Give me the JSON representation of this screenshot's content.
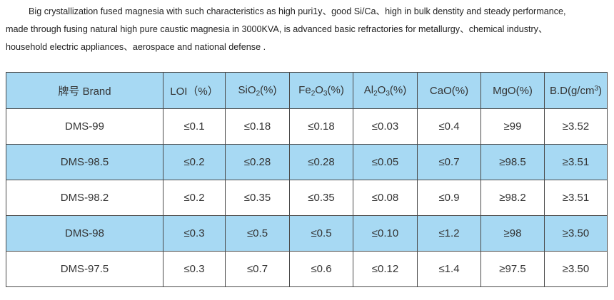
{
  "intro": {
    "line1": "Big crystallization fused magnesia with such characteristics as high puri1y、good Si/Ca、high in bulk denstity and steady performance,",
    "line2": "made through fusing natural high pure caustic magnesia in 3000KVA, is advanced basic refractories for metallurgy、chemical industry、",
    "line3": "household electric appliances、aerospace and national defense ."
  },
  "table": {
    "headers": {
      "brand_cn": "牌号",
      "brand_en": "Brand",
      "loi": "LOI（%）",
      "sio2": {
        "a": "SiO",
        "sub": "2",
        "b": "(%)"
      },
      "fe2o3": {
        "a": "Fe",
        "sub1": "2",
        "b": "O",
        "sub2": "3",
        "c": "(%)"
      },
      "al2o3": {
        "a": "Al",
        "sub1": "2",
        "b": "O",
        "sub2": "3",
        "c": "(%)"
      },
      "cao": "CaO(%)",
      "mgo": "MgO(%)",
      "bd": {
        "a": "B.D(g/cm",
        "sup": "3",
        "b": ")"
      }
    },
    "rows": [
      {
        "brand": "DMS-99",
        "loi": "≤0.1",
        "sio2": "≤0.18",
        "fe2o3": "≤0.18",
        "al2o3": "≤0.03",
        "cao": "≤0.4",
        "mgo": "≥99",
        "bd": "≥3.52"
      },
      {
        "brand": "DMS-98.5",
        "loi": "≤0.2",
        "sio2": "≤0.28",
        "fe2o3": "≤0.28",
        "al2o3": "≤0.05",
        "cao": "≤0.7",
        "mgo": "≥98.5",
        "bd": "≥3.51"
      },
      {
        "brand": "DMS-98.2",
        "loi": "≤0.2",
        "sio2": "≤0.35",
        "fe2o3": "≤0.35",
        "al2o3": "≤0.08",
        "cao": "≤0.9",
        "mgo": "≥98.2",
        "bd": "≥3.51"
      },
      {
        "brand": "DMS-98",
        "loi": "≤0.3",
        "sio2": "≤0.5",
        "fe2o3": "≤0.5",
        "al2o3": "≤0.10",
        "cao": "≤1.2",
        "mgo": "≥98",
        "bd": "≥3.50"
      },
      {
        "brand": "DMS-97.5",
        "loi": "≤0.3",
        "sio2": "≤0.7",
        "fe2o3": "≤0.6",
        "al2o3": "≤0.12",
        "cao": "≤1.4",
        "mgo": "≥97.5",
        "bd": "≥3.50"
      }
    ],
    "colors": {
      "header_bg": "#a7d9f3",
      "border": "#4a4a4a"
    }
  }
}
